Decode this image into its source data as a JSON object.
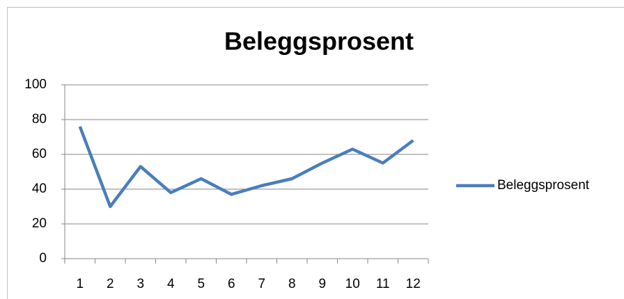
{
  "chart_data": {
    "type": "line",
    "title": "Beleggsprosent",
    "categories": [
      "1",
      "2",
      "3",
      "4",
      "5",
      "6",
      "7",
      "8",
      "9",
      "10",
      "11",
      "12"
    ],
    "series": [
      {
        "name": "Beleggsprosent",
        "color": "#4a7ebb",
        "values": [
          76,
          30,
          53,
          38,
          46,
          37,
          42,
          46,
          55,
          63,
          55,
          68
        ]
      }
    ],
    "ylim": [
      0,
      100
    ],
    "yticks": [
      0,
      20,
      40,
      60,
      80,
      100
    ],
    "grid": true,
    "legend": "right"
  }
}
